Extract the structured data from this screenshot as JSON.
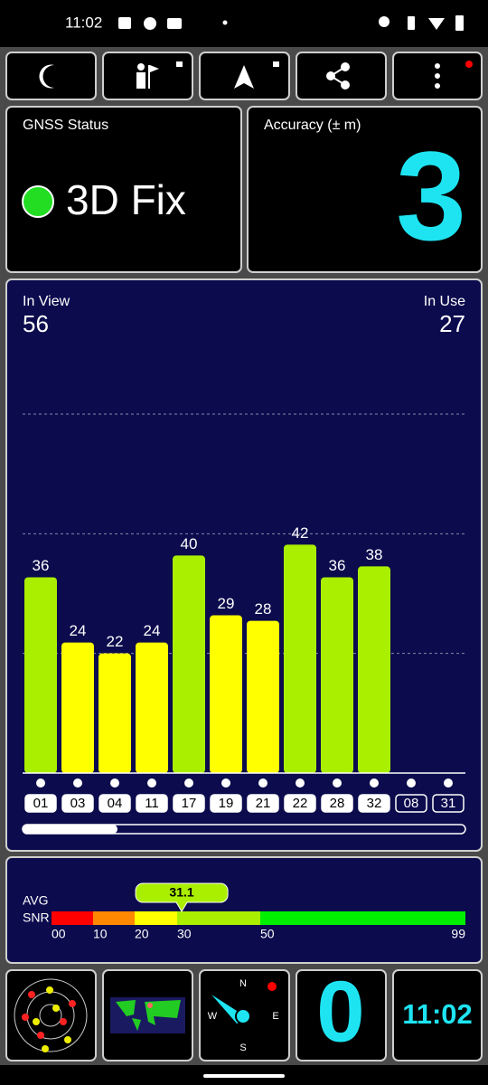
{
  "status_bar": {
    "time": "11:02"
  },
  "gnss_status": {
    "label": "GNSS Status",
    "value": "3D Fix"
  },
  "accuracy": {
    "label": "Accuracy (± m)",
    "value": 3
  },
  "satellites": {
    "in_view_label": "In View",
    "in_view": 56,
    "in_use_label": "In Use",
    "in_use": 27,
    "chart": {
      "type": "bar",
      "categories": [
        "01",
        "03",
        "04",
        "11",
        "17",
        "19",
        "21",
        "22",
        "28",
        "32",
        "08",
        "31"
      ],
      "values": [
        36,
        24,
        22,
        24,
        40,
        29,
        28,
        42,
        36,
        38,
        0,
        0
      ],
      "used": [
        true,
        true,
        true,
        true,
        true,
        true,
        true,
        true,
        true,
        true,
        false,
        false
      ],
      "colors": [
        "#aaee00",
        "#ffff00",
        "#ffff00",
        "#ffff00",
        "#aaee00",
        "#ffff00",
        "#ffff00",
        "#aaee00",
        "#aaee00",
        "#aaee00",
        "#ff2020",
        "#ff2020"
      ],
      "ylim": [
        0,
        66
      ],
      "grid": [
        22,
        44,
        66
      ]
    }
  },
  "snr": {
    "avg_label": "AVG",
    "snr_label": "SNR",
    "avg": 31.1,
    "ticks": [
      {
        "value": 0,
        "label": "00"
      },
      10,
      20,
      30,
      50,
      99
    ],
    "colors": [
      "#ff0000",
      "#ff8800",
      "#ffff00",
      "#aaee00",
      "#00ee00"
    ]
  },
  "tiles": {
    "compass": [
      "N",
      "E",
      "S",
      "W"
    ],
    "speed": 0,
    "clock": "11:02"
  }
}
